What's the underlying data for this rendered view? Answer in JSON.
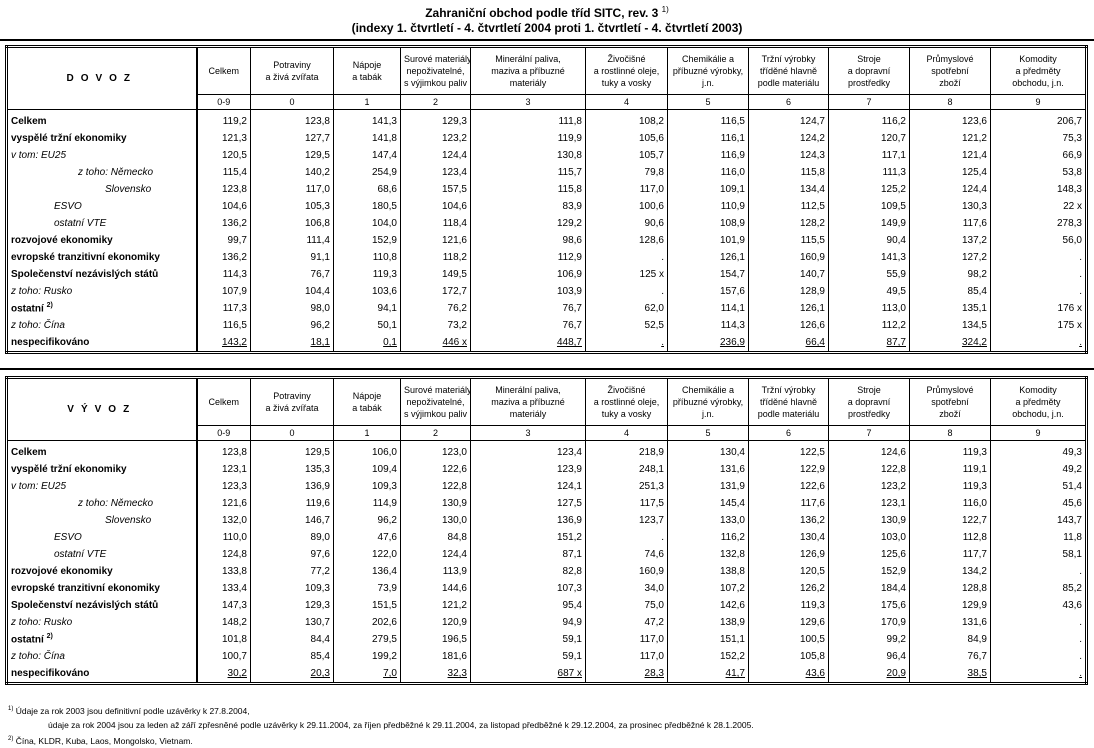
{
  "title": "Zahraniční obchod podle tříd SITC, rev. 3",
  "title_note": "1)",
  "subtitle": "(indexy 1. čtvrtletí - 4. čtvrtletí 2004 proti 1. čtvrtletí - 4. čtvrtletí 2003)",
  "columns": [
    {
      "label": "Celkem",
      "code": "0-9"
    },
    {
      "label": "Potraviny\na živá zvířata",
      "code": "0"
    },
    {
      "label": "Nápoje\na tabák",
      "code": "1"
    },
    {
      "label": "Surové materiály,\nnepoživatelné,\ns výjimkou paliv",
      "code": "2"
    },
    {
      "label": "Minerální paliva,\nmaziva a příbuzné\nmateriály",
      "code": "3"
    },
    {
      "label": "Živočišné\na rostlinné oleje,\ntuky a vosky",
      "code": "4"
    },
    {
      "label": "Chemikálie a\npříbuzné výrobky,\nj.n.",
      "code": "5"
    },
    {
      "label": "Tržní výrobky\ntříděné hlavně\npodle materiálu",
      "code": "6"
    },
    {
      "label": "Stroje\na dopravní\nprostředky",
      "code": "7"
    },
    {
      "label": "Průmyslové\nspotřební\nzboží",
      "code": "8"
    },
    {
      "label": "Komodity\na předměty\nobchodu, j.n.",
      "code": "9"
    }
  ],
  "tables": [
    {
      "heading": "DOVOZ",
      "rows": [
        {
          "label": "Celkem",
          "kind": "bold",
          "values": [
            "119,2",
            "123,8",
            "141,3",
            "129,3",
            "111,8",
            "108,2",
            "116,5",
            "124,7",
            "116,2",
            "123,6",
            "206,7"
          ]
        },
        {
          "label": "vyspělé tržní ekonomiky",
          "kind": "bold",
          "values": [
            "121,3",
            "127,7",
            "141,8",
            "123,2",
            "119,9",
            "105,6",
            "116,1",
            "124,2",
            "120,7",
            "121,2",
            "75,3"
          ]
        },
        {
          "label": "v tom:   EU25",
          "kind": "italic",
          "values": [
            "120,5",
            "129,5",
            "147,4",
            "124,4",
            "130,8",
            "105,7",
            "116,9",
            "124,3",
            "117,1",
            "121,4",
            "66,9"
          ]
        },
        {
          "label": "z toho: Německo",
          "kind": "italic-2",
          "values": [
            "115,4",
            "140,2",
            "254,9",
            "123,4",
            "115,7",
            "79,8",
            "116,0",
            "115,8",
            "111,3",
            "125,4",
            "53,8"
          ]
        },
        {
          "label": "Slovensko",
          "kind": "italic-3",
          "values": [
            "123,8",
            "117,0",
            "68,6",
            "157,5",
            "115,8",
            "117,0",
            "109,1",
            "134,4",
            "125,2",
            "124,4",
            "148,3"
          ]
        },
        {
          "label": "ESVO",
          "kind": "italic-1",
          "values": [
            "104,6",
            "105,3",
            "180,5",
            "104,6",
            "83,9",
            "100,6",
            "110,9",
            "112,5",
            "109,5",
            "130,3",
            "22 x"
          ]
        },
        {
          "label": "ostatní VTE",
          "kind": "italic-1",
          "values": [
            "136,2",
            "106,8",
            "104,0",
            "118,4",
            "129,2",
            "90,6",
            "108,9",
            "128,2",
            "149,9",
            "117,6",
            "278,3"
          ]
        },
        {
          "label": "rozvojové ekonomiky",
          "kind": "bold",
          "values": [
            "99,7",
            "111,4",
            "152,9",
            "121,6",
            "98,6",
            "128,6",
            "101,9",
            "115,5",
            "90,4",
            "137,2",
            "56,0"
          ]
        },
        {
          "label": "evropské tranzitivní ekonomiky",
          "kind": "bold",
          "values": [
            "136,2",
            "91,1",
            "110,8",
            "118,2",
            "112,9",
            ".",
            "126,1",
            "160,9",
            "141,3",
            "127,2",
            "."
          ]
        },
        {
          "label": "Společenství nezávislých států",
          "kind": "bold",
          "values": [
            "114,3",
            "76,7",
            "119,3",
            "149,5",
            "106,9",
            "125 x",
            "154,7",
            "140,7",
            "55,9",
            "98,2",
            "."
          ]
        },
        {
          "label": "z toho:  Rusko",
          "kind": "italic",
          "values": [
            "107,9",
            "104,4",
            "103,6",
            "172,7",
            "103,9",
            ".",
            "157,6",
            "128,9",
            "49,5",
            "85,4",
            "."
          ]
        },
        {
          "label": "ostatní",
          "note": "2)",
          "kind": "bold",
          "values": [
            "117,3",
            "98,0",
            "94,1",
            "76,2",
            "76,7",
            "62,0",
            "114,1",
            "126,1",
            "113,0",
            "135,1",
            "176 x"
          ]
        },
        {
          "label": "z toho:  Čína",
          "kind": "italic",
          "values": [
            "116,5",
            "96,2",
            "50,1",
            "73,2",
            "76,7",
            "52,5",
            "114,3",
            "126,6",
            "112,2",
            "134,5",
            "175 x"
          ]
        },
        {
          "label": "nespecifikováno",
          "kind": "bold",
          "values": [
            "143,2",
            "18,1",
            "0,1",
            "446 x",
            "448,7",
            ".",
            "236,9",
            "66,4",
            "87,7",
            "324,2",
            "."
          ]
        }
      ]
    },
    {
      "heading": "VÝVOZ",
      "rows": [
        {
          "label": "Celkem",
          "kind": "bold",
          "values": [
            "123,8",
            "129,5",
            "106,0",
            "123,0",
            "123,4",
            "218,9",
            "130,4",
            "122,5",
            "124,6",
            "119,3",
            "49,3"
          ]
        },
        {
          "label": "vyspělé tržní ekonomiky",
          "kind": "bold",
          "values": [
            "123,1",
            "135,3",
            "109,4",
            "122,6",
            "123,9",
            "248,1",
            "131,6",
            "122,9",
            "122,8",
            "119,1",
            "49,2"
          ]
        },
        {
          "label": "v tom:   EU25",
          "kind": "italic",
          "values": [
            "123,3",
            "136,9",
            "109,3",
            "122,8",
            "124,1",
            "251,3",
            "131,9",
            "122,6",
            "123,2",
            "119,3",
            "51,4"
          ]
        },
        {
          "label": "z toho: Německo",
          "kind": "italic-2",
          "values": [
            "121,6",
            "119,6",
            "114,9",
            "130,9",
            "127,5",
            "117,5",
            "145,4",
            "117,6",
            "123,1",
            "116,0",
            "45,6"
          ]
        },
        {
          "label": "Slovensko",
          "kind": "italic-3",
          "values": [
            "132,0",
            "146,7",
            "96,2",
            "130,0",
            "136,9",
            "123,7",
            "133,0",
            "136,2",
            "130,9",
            "122,7",
            "143,7"
          ]
        },
        {
          "label": "ESVO",
          "kind": "italic-1",
          "values": [
            "110,0",
            "89,0",
            "47,6",
            "84,8",
            "151,2",
            ".",
            "116,2",
            "130,4",
            "103,0",
            "112,8",
            "11,8"
          ]
        },
        {
          "label": "ostatní VTE",
          "kind": "italic-1",
          "values": [
            "124,8",
            "97,6",
            "122,0",
            "124,4",
            "87,1",
            "74,6",
            "132,8",
            "126,9",
            "125,6",
            "117,7",
            "58,1"
          ]
        },
        {
          "label": "rozvojové ekonomiky",
          "kind": "bold",
          "values": [
            "133,8",
            "77,2",
            "136,4",
            "113,9",
            "82,8",
            "160,9",
            "138,8",
            "120,5",
            "152,9",
            "134,2",
            "."
          ]
        },
        {
          "label": "evropské tranzitivní ekonomiky",
          "kind": "bold",
          "values": [
            "133,4",
            "109,3",
            "73,9",
            "144,6",
            "107,3",
            "34,0",
            "107,2",
            "126,2",
            "184,4",
            "128,8",
            "85,2"
          ]
        },
        {
          "label": "Společenství nezávislých států",
          "kind": "bold",
          "values": [
            "147,3",
            "129,3",
            "151,5",
            "121,2",
            "95,4",
            "75,0",
            "142,6",
            "119,3",
            "175,6",
            "129,9",
            "43,6"
          ]
        },
        {
          "label": "z toho:  Rusko",
          "kind": "italic",
          "values": [
            "148,2",
            "130,7",
            "202,6",
            "120,9",
            "94,9",
            "47,2",
            "138,9",
            "129,6",
            "170,9",
            "131,6",
            "."
          ]
        },
        {
          "label": "ostatní",
          "note": "2)",
          "kind": "bold",
          "values": [
            "101,8",
            "84,4",
            "279,5",
            "196,5",
            "59,1",
            "117,0",
            "151,1",
            "100,5",
            "99,2",
            "84,9",
            "."
          ]
        },
        {
          "label": "z toho:  Čína",
          "kind": "italic",
          "values": [
            "100,7",
            "85,4",
            "199,2",
            "181,6",
            "59,1",
            "117,0",
            "152,2",
            "105,8",
            "96,4",
            "76,7",
            "."
          ]
        },
        {
          "label": "nespecifikováno",
          "kind": "bold",
          "values": [
            "30,2",
            "20,3",
            "7,0",
            "32,3",
            "687 x",
            "28,3",
            "41,7",
            "43,6",
            "20,9",
            "38,5",
            "."
          ]
        }
      ]
    }
  ],
  "footnotes": [
    {
      "mark": "1)",
      "text": "Údaje za rok 2003 jsou definitivní podle uzávěrky k 27.8.2004,"
    },
    {
      "mark": "",
      "text": "údaje za rok 2004 jsou za leden až září zpřesněné podle uzávěrky k 29.11.2004, za říjen předběžné k 29.11.2004, za listopad předběžné k 29.12.2004, za prosinec předběžné k 28.1.2005."
    },
    {
      "mark": "2)",
      "text": "Čína, KLDR, Kuba, Laos, Mongolsko, Vietnam."
    }
  ]
}
